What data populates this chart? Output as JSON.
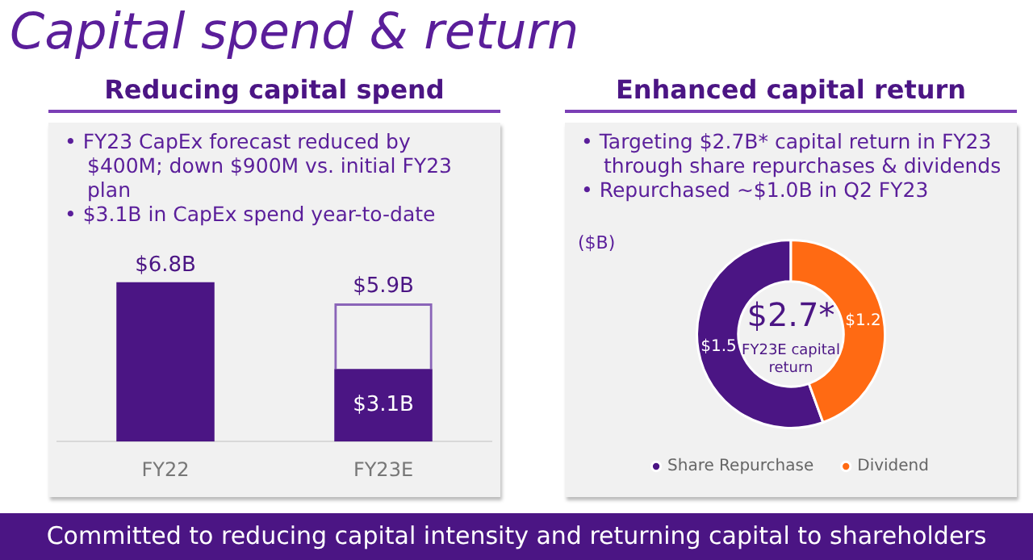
{
  "chart_data": [
    {
      "type": "other",
      "title": "Capital spend & return",
      "annotations": [
        "Committed to reducing capital intensity and returning capital to shareholders"
      ]
    },
    {
      "type": "bar",
      "title": "Reducing capital spend",
      "categories": [
        "FY22",
        "FY23E"
      ],
      "stacked": true,
      "tick_labels": "x",
      "grid": false,
      "series": [
        {
          "color": "#4b1584",
          "values": [
            6.8,
            3.1
          ],
          "value_labels": [
            null,
            "$3.1B"
          ]
        },
        {
          "color": "#8a64b8",
          "values": [
            null,
            2.8
          ],
          "line_style": "dashed"
        }
      ],
      "totals": [
        "$6.8B",
        "$5.9B"
      ],
      "annotations": [
        "• FY23 CapEx forecast reduced by $400M; down $900M vs. initial FY23 plan",
        "• $3.1B in CapEx spend year-to-date"
      ]
    },
    {
      "type": "donut",
      "title": "Enhanced capital return",
      "categories": [
        "Share Repurchase",
        "Dividend"
      ],
      "values": [
        1.5,
        1.2
      ],
      "colors": [
        "#4b1584",
        "#ff6a13"
      ],
      "value_labels": [
        "$1.5",
        "$1.2"
      ],
      "legend": "bottom",
      "annotations": [
        "• Targeting $2.7B* capital return in FY23 through share repurchases & dividends",
        "• Repurchased ~$1.0B in Q2 FY23",
        "($B)",
        "$2.7*",
        "FY23E capital return"
      ]
    }
  ]
}
